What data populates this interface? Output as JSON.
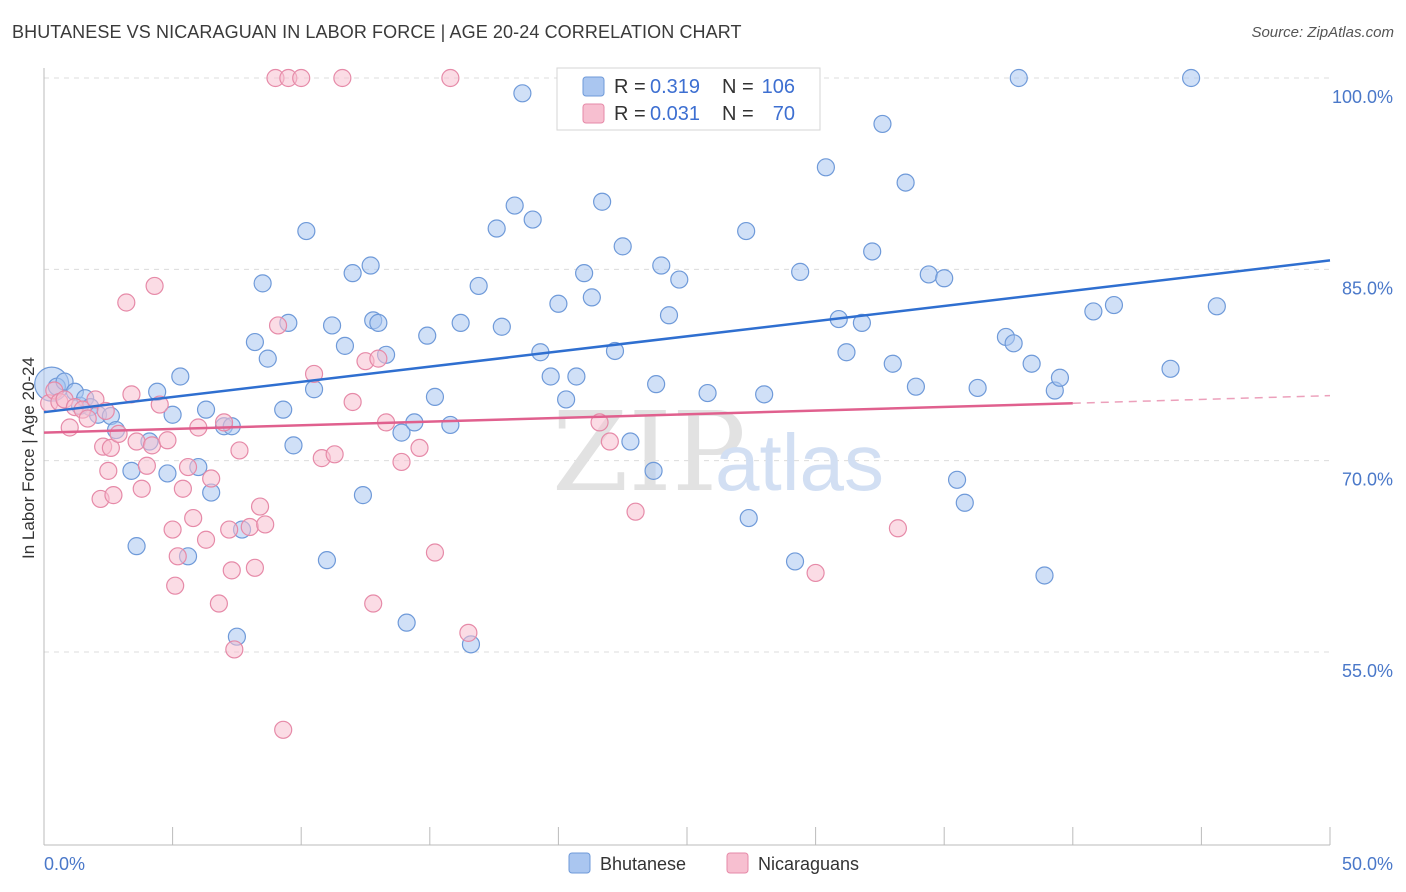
{
  "title": "BHUTANESE VS NICARAGUAN IN LABOR FORCE | AGE 20-24 CORRELATION CHART",
  "source": "Source: ZipAtlas.com",
  "watermark": {
    "zip": "ZIP",
    "atlas": "atlas"
  },
  "legend": {
    "rows": [
      {
        "r_label": "R =",
        "r_value": "0.319",
        "n_label": "N =",
        "n_value": "106"
      },
      {
        "r_label": "R =",
        "r_value": "0.031",
        "n_label": "N =",
        "n_value": "70"
      }
    ]
  },
  "bottom_legend": [
    "Bhutanese",
    "Nicaraguans"
  ],
  "colors": {
    "bhutanese_fill": "#aac6f0",
    "bhutanese_stroke": "#6f9ad9",
    "bhutanese_line": "#2f6fd0",
    "nicaraguan_fill": "#f7bfd0",
    "nicaraguan_stroke": "#e68aa8",
    "nicaraguan_line": "#e0608e",
    "grid": "#dcdcdc",
    "axis_label": "#4a78c9"
  },
  "chart_data": {
    "type": "scatter",
    "title": "BHUTANESE VS NICARAGUAN IN LABOR FORCE | AGE 20-24 CORRELATION CHART",
    "xlabel": "",
    "ylabel": "In Labor Force | Age 20-24",
    "xlim": [
      0,
      50
    ],
    "ylim": [
      40,
      103
    ],
    "x_tick_labels": [
      "0.0%",
      "50.0%"
    ],
    "y_ticks": [
      55,
      70,
      85,
      100
    ],
    "y_tick_labels": [
      "55.0%",
      "70.0%",
      "85.0%",
      "100.0%"
    ],
    "grid": true,
    "legend_position": "top-center",
    "series": [
      {
        "name": "Bhutanese",
        "R": 0.319,
        "N": 106,
        "trend": {
          "x": [
            0,
            50
          ],
          "y": [
            73.8,
            85.7
          ],
          "dashed_from": null
        },
        "points": [
          [
            0.3,
            76.0
          ],
          [
            0.5,
            75.8
          ],
          [
            0.8,
            76.2
          ],
          [
            1.2,
            75.4
          ],
          [
            1.4,
            74.3
          ],
          [
            1.6,
            74.9
          ],
          [
            1.8,
            74.2
          ],
          [
            2.1,
            73.6
          ],
          [
            2.6,
            73.5
          ],
          [
            2.8,
            72.4
          ],
          [
            3.4,
            69.2
          ],
          [
            3.6,
            63.3
          ],
          [
            4.1,
            71.5
          ],
          [
            4.4,
            75.4
          ],
          [
            4.8,
            69.0
          ],
          [
            5.0,
            73.6
          ],
          [
            5.3,
            76.6
          ],
          [
            5.6,
            62.5
          ],
          [
            6.0,
            69.5
          ],
          [
            6.3,
            74.0
          ],
          [
            6.5,
            67.5
          ],
          [
            7.0,
            72.7
          ],
          [
            7.3,
            72.7
          ],
          [
            7.5,
            56.2
          ],
          [
            7.7,
            64.6
          ],
          [
            8.2,
            79.3
          ],
          [
            8.5,
            83.9
          ],
          [
            8.7,
            78.0
          ],
          [
            9.3,
            74.0
          ],
          [
            9.5,
            80.8
          ],
          [
            9.7,
            71.2
          ],
          [
            10.2,
            88.0
          ],
          [
            10.5,
            75.6
          ],
          [
            11.0,
            62.2
          ],
          [
            11.2,
            80.6
          ],
          [
            11.7,
            79.0
          ],
          [
            12.0,
            84.7
          ],
          [
            12.4,
            67.3
          ],
          [
            12.7,
            85.3
          ],
          [
            12.8,
            81.0
          ],
          [
            13.0,
            80.8
          ],
          [
            13.3,
            78.3
          ],
          [
            13.9,
            72.2
          ],
          [
            14.1,
            57.3
          ],
          [
            14.4,
            73.0
          ],
          [
            14.9,
            79.8
          ],
          [
            15.2,
            75.0
          ],
          [
            15.8,
            72.8
          ],
          [
            16.2,
            80.8
          ],
          [
            16.6,
            55.6
          ],
          [
            16.9,
            83.7
          ],
          [
            17.6,
            88.2
          ],
          [
            17.8,
            80.5
          ],
          [
            18.3,
            90.0
          ],
          [
            18.6,
            98.8
          ],
          [
            19.0,
            88.9
          ],
          [
            19.3,
            78.5
          ],
          [
            19.7,
            76.6
          ],
          [
            20.0,
            82.3
          ],
          [
            20.3,
            74.8
          ],
          [
            20.7,
            76.6
          ],
          [
            21.0,
            84.7
          ],
          [
            21.3,
            82.8
          ],
          [
            21.7,
            90.3
          ],
          [
            22.0,
            100.0
          ],
          [
            22.2,
            78.6
          ],
          [
            22.5,
            86.8
          ],
          [
            22.8,
            71.5
          ],
          [
            23.7,
            69.2
          ],
          [
            23.8,
            76.0
          ],
          [
            24.0,
            85.3
          ],
          [
            24.3,
            81.4
          ],
          [
            24.7,
            84.2
          ],
          [
            25.8,
            75.3
          ],
          [
            26.0,
            100.0
          ],
          [
            27.3,
            88.0
          ],
          [
            27.4,
            65.5
          ],
          [
            28.0,
            75.2
          ],
          [
            29.2,
            62.1
          ],
          [
            29.4,
            84.8
          ],
          [
            30.4,
            93.0
          ],
          [
            30.9,
            81.1
          ],
          [
            31.2,
            78.5
          ],
          [
            31.8,
            80.8
          ],
          [
            32.2,
            86.4
          ],
          [
            32.6,
            96.4
          ],
          [
            33.0,
            77.6
          ],
          [
            33.5,
            91.8
          ],
          [
            33.9,
            75.8
          ],
          [
            34.4,
            84.6
          ],
          [
            35.0,
            84.3
          ],
          [
            35.5,
            68.5
          ],
          [
            35.8,
            66.7
          ],
          [
            36.3,
            75.7
          ],
          [
            37.4,
            79.7
          ],
          [
            37.7,
            79.2
          ],
          [
            37.9,
            100.0
          ],
          [
            38.4,
            77.6
          ],
          [
            38.9,
            61.0
          ],
          [
            39.3,
            75.5
          ],
          [
            39.5,
            76.5
          ],
          [
            40.8,
            81.7
          ],
          [
            41.6,
            82.2
          ],
          [
            43.8,
            77.2
          ],
          [
            44.6,
            100.0
          ],
          [
            45.6,
            82.1
          ]
        ]
      },
      {
        "name": "Nicaraguans",
        "R": 0.031,
        "N": 70,
        "trend": {
          "x": [
            0,
            40,
            50
          ],
          "y": [
            72.2,
            74.5,
            75.1
          ],
          "dashed_from": 40
        },
        "points": [
          [
            0.2,
            74.5
          ],
          [
            0.4,
            75.5
          ],
          [
            0.6,
            74.6
          ],
          [
            0.8,
            74.8
          ],
          [
            1.0,
            72.6
          ],
          [
            1.2,
            74.2
          ],
          [
            1.5,
            74.0
          ],
          [
            1.7,
            73.3
          ],
          [
            2.0,
            74.8
          ],
          [
            2.2,
            67.0
          ],
          [
            2.3,
            71.1
          ],
          [
            2.4,
            73.9
          ],
          [
            2.5,
            69.2
          ],
          [
            2.6,
            71.0
          ],
          [
            2.7,
            67.3
          ],
          [
            2.9,
            72.1
          ],
          [
            3.2,
            82.4
          ],
          [
            3.4,
            75.2
          ],
          [
            3.6,
            71.5
          ],
          [
            3.8,
            67.8
          ],
          [
            4.0,
            69.6
          ],
          [
            4.2,
            71.2
          ],
          [
            4.3,
            83.7
          ],
          [
            4.5,
            74.4
          ],
          [
            4.8,
            71.6
          ],
          [
            5.0,
            64.6
          ],
          [
            5.1,
            60.2
          ],
          [
            5.2,
            62.5
          ],
          [
            5.4,
            67.8
          ],
          [
            5.6,
            69.5
          ],
          [
            5.8,
            65.5
          ],
          [
            6.0,
            72.6
          ],
          [
            6.3,
            63.8
          ],
          [
            6.5,
            68.6
          ],
          [
            6.8,
            58.8
          ],
          [
            7.0,
            73.0
          ],
          [
            7.2,
            64.6
          ],
          [
            7.3,
            61.4
          ],
          [
            7.4,
            55.2
          ],
          [
            7.6,
            70.8
          ],
          [
            8.0,
            64.8
          ],
          [
            8.2,
            61.6
          ],
          [
            8.4,
            66.4
          ],
          [
            8.6,
            65.0
          ],
          [
            9.0,
            100.0
          ],
          [
            9.1,
            80.6
          ],
          [
            9.3,
            48.9
          ],
          [
            9.5,
            100.0
          ],
          [
            10.0,
            100.0
          ],
          [
            10.5,
            76.8
          ],
          [
            10.8,
            70.2
          ],
          [
            11.3,
            70.5
          ],
          [
            11.6,
            100.0
          ],
          [
            12.0,
            74.6
          ],
          [
            12.5,
            77.8
          ],
          [
            12.8,
            58.8
          ],
          [
            13.0,
            78.0
          ],
          [
            13.3,
            73.0
          ],
          [
            13.9,
            69.9
          ],
          [
            14.6,
            71.0
          ],
          [
            15.2,
            62.8
          ],
          [
            15.8,
            100.0
          ],
          [
            16.5,
            56.5
          ],
          [
            21.6,
            73.0
          ],
          [
            22.0,
            71.5
          ],
          [
            23.0,
            66.0
          ],
          [
            24.2,
            100.0
          ],
          [
            26.3,
            100.0
          ],
          [
            30.0,
            61.2
          ],
          [
            33.2,
            64.7
          ]
        ]
      }
    ]
  }
}
